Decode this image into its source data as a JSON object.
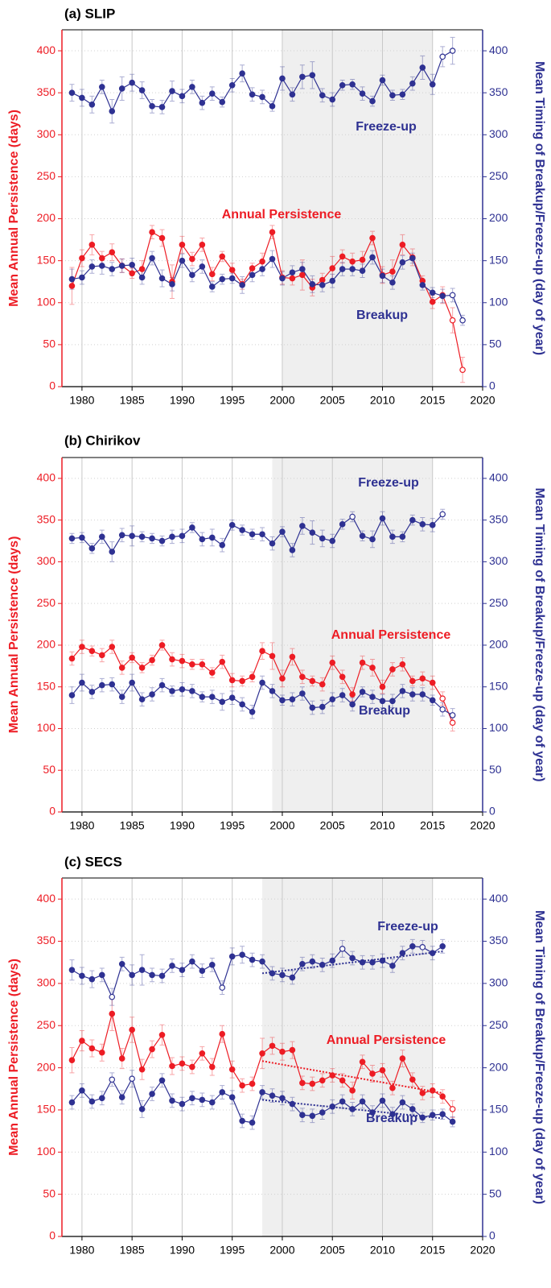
{
  "chart_data": [
    {
      "type": "line",
      "title": "(a) SLIP",
      "ylabel": "Mean Annual Persistence (days)",
      "y2label": "Mean Timing of Breakup/Freeze-up (day of year)",
      "x": [
        1979,
        1980,
        1981,
        1982,
        1983,
        1984,
        1985,
        1986,
        1987,
        1988,
        1989,
        1990,
        1991,
        1992,
        1993,
        1994,
        1995,
        1996,
        1997,
        1998,
        1999,
        2000,
        2001,
        2002,
        2003,
        2004,
        2005,
        2006,
        2007,
        2008,
        2009,
        2010,
        2011,
        2012,
        2013,
        2014,
        2015,
        2016,
        2017,
        2018
      ],
      "xlim": [
        1978,
        2020
      ],
      "xticks": [
        1980,
        1985,
        1990,
        1995,
        2000,
        2005,
        2010,
        2015,
        2020
      ],
      "ylim": [
        0,
        425
      ],
      "yticks": [
        0,
        50,
        100,
        150,
        200,
        250,
        300,
        350,
        400
      ],
      "y2lim": [
        0,
        425
      ],
      "y2ticks": [
        0,
        50,
        100,
        150,
        200,
        250,
        300,
        350,
        400
      ],
      "grid": true,
      "shade": [
        2000,
        2015
      ],
      "series": [
        {
          "name": "Annual Persistence",
          "color": "#ed1c24",
          "axis": "y",
          "values": [
            120,
            153,
            169,
            153,
            160,
            144,
            135,
            140,
            184,
            177,
            125,
            169,
            152,
            169,
            134,
            155,
            139,
            122,
            141,
            149,
            184,
            130,
            129,
            133,
            118,
            127,
            141,
            155,
            149,
            151,
            177,
            133,
            137,
            169,
            154,
            126,
            101,
            109,
            79,
            20
          ],
          "errors": [
            22,
            10,
            12,
            8,
            10,
            8,
            6,
            10,
            8,
            10,
            20,
            10,
            8,
            8,
            8,
            6,
            8,
            6,
            6,
            10,
            8,
            8,
            8,
            18,
            10,
            8,
            14,
            8,
            10,
            10,
            8,
            10,
            14,
            12,
            10,
            6,
            8,
            10,
            15,
            15
          ],
          "open_x": [
            2017,
            2018
          ]
        },
        {
          "name": "Breakup",
          "color": "#2e3192",
          "axis": "y2",
          "values": [
            128,
            130,
            143,
            144,
            140,
            144,
            145,
            130,
            153,
            129,
            122,
            150,
            133,
            143,
            119,
            128,
            129,
            121,
            133,
            140,
            152,
            129,
            136,
            140,
            122,
            121,
            126,
            140,
            140,
            138,
            154,
            132,
            124,
            148,
            153,
            121,
            112,
            108,
            109,
            79
          ],
          "errors": [
            12,
            8,
            8,
            10,
            8,
            8,
            8,
            8,
            8,
            10,
            8,
            8,
            8,
            8,
            6,
            6,
            6,
            10,
            8,
            8,
            10,
            8,
            8,
            8,
            10,
            8,
            8,
            8,
            8,
            8,
            8,
            8,
            8,
            8,
            6,
            6,
            6,
            8,
            8,
            6
          ],
          "open_x": [
            2017,
            2018
          ]
        },
        {
          "name": "Freeze-up",
          "color": "#2e3192",
          "axis": "y2",
          "values": [
            350,
            344,
            336,
            357,
            328,
            355,
            362,
            353,
            334,
            333,
            352,
            346,
            357,
            338,
            349,
            339,
            359,
            373,
            348,
            345,
            334,
            367,
            348,
            369,
            371,
            347,
            342,
            359,
            360,
            349,
            340,
            365,
            347,
            348,
            361,
            380,
            360,
            393,
            400,
            null
          ],
          "errors": [
            10,
            10,
            10,
            8,
            14,
            14,
            10,
            10,
            8,
            8,
            12,
            8,
            8,
            8,
            8,
            6,
            8,
            10,
            8,
            8,
            6,
            14,
            8,
            14,
            16,
            8,
            8,
            6,
            6,
            8,
            6,
            6,
            6,
            6,
            8,
            14,
            12,
            12,
            16,
            null
          ],
          "open_x": [
            2016,
            2017
          ]
        }
      ]
    },
    {
      "type": "line",
      "title": "(b) Chirikov",
      "ylabel": "Mean Annual Persistence (days)",
      "y2label": "Mean Timing of Breakup/Freeze-up (day of year)",
      "x": [
        1979,
        1980,
        1981,
        1982,
        1983,
        1984,
        1985,
        1986,
        1987,
        1988,
        1989,
        1990,
        1991,
        1992,
        1993,
        1994,
        1995,
        1996,
        1997,
        1998,
        1999,
        2000,
        2001,
        2002,
        2003,
        2004,
        2005,
        2006,
        2007,
        2008,
        2009,
        2010,
        2011,
        2012,
        2013,
        2014,
        2015,
        2016,
        2017
      ],
      "xlim": [
        1978,
        2020
      ],
      "xticks": [
        1980,
        1985,
        1990,
        1995,
        2000,
        2005,
        2010,
        2015,
        2020
      ],
      "ylim": [
        0,
        425
      ],
      "yticks": [
        0,
        50,
        100,
        150,
        200,
        250,
        300,
        350,
        400
      ],
      "y2lim": [
        0,
        425
      ],
      "y2ticks": [
        0,
        50,
        100,
        150,
        200,
        250,
        300,
        350,
        400
      ],
      "grid": true,
      "shade": [
        1999,
        2015
      ],
      "series": [
        {
          "name": "Annual Persistence",
          "color": "#ed1c24",
          "axis": "y",
          "values": [
            184,
            198,
            193,
            188,
            198,
            173,
            185,
            173,
            182,
            200,
            183,
            181,
            177,
            177,
            167,
            180,
            158,
            157,
            162,
            193,
            187,
            160,
            186,
            162,
            157,
            153,
            179,
            162,
            141,
            179,
            173,
            150,
            171,
            177,
            157,
            160,
            155,
            136,
            107
          ],
          "errors": [
            8,
            8,
            6,
            8,
            8,
            8,
            6,
            6,
            6,
            6,
            8,
            8,
            6,
            6,
            6,
            8,
            8,
            6,
            6,
            10,
            16,
            10,
            10,
            8,
            6,
            8,
            8,
            8,
            8,
            8,
            10,
            8,
            8,
            8,
            6,
            8,
            8,
            8,
            10
          ],
          "open_x": [
            2016,
            2017
          ]
        },
        {
          "name": "Breakup",
          "color": "#2e3192",
          "axis": "y2",
          "values": [
            140,
            155,
            144,
            152,
            153,
            138,
            155,
            135,
            141,
            152,
            145,
            147,
            145,
            138,
            138,
            132,
            137,
            129,
            120,
            155,
            145,
            134,
            135,
            142,
            125,
            126,
            135,
            140,
            129,
            144,
            138,
            133,
            133,
            145,
            141,
            141,
            134,
            123,
            116
          ],
          "errors": [
            10,
            10,
            8,
            8,
            8,
            8,
            10,
            8,
            8,
            8,
            6,
            8,
            8,
            6,
            8,
            10,
            8,
            8,
            8,
            8,
            8,
            6,
            8,
            8,
            8,
            8,
            8,
            8,
            8,
            6,
            8,
            8,
            8,
            8,
            8,
            8,
            6,
            8,
            8
          ],
          "open_x": [
            2016,
            2017
          ]
        },
        {
          "name": "Freeze-up",
          "color": "#2e3192",
          "axis": "y2",
          "values": [
            328,
            329,
            316,
            330,
            312,
            332,
            331,
            330,
            328,
            325,
            330,
            331,
            341,
            327,
            329,
            320,
            344,
            338,
            333,
            333,
            322,
            336,
            314,
            343,
            335,
            328,
            325,
            345,
            354,
            331,
            327,
            352,
            330,
            330,
            350,
            345,
            344,
            357,
            null
          ],
          "errors": [
            6,
            6,
            6,
            8,
            12,
            8,
            12,
            6,
            6,
            6,
            8,
            8,
            6,
            8,
            10,
            8,
            6,
            6,
            6,
            8,
            8,
            6,
            8,
            10,
            14,
            10,
            8,
            6,
            6,
            6,
            10,
            8,
            8,
            6,
            6,
            8,
            8,
            6,
            null
          ],
          "open_x": [
            2007,
            2016
          ]
        }
      ]
    },
    {
      "type": "line",
      "title": "(c) SECS",
      "ylabel": "Mean Annual Persistence (days)",
      "y2label": "Mean Timing of Breakup/Freeze-up (day of year)",
      "x": [
        1979,
        1980,
        1981,
        1982,
        1983,
        1984,
        1985,
        1986,
        1987,
        1988,
        1989,
        1990,
        1991,
        1992,
        1993,
        1994,
        1995,
        1996,
        1997,
        1998,
        1999,
        2000,
        2001,
        2002,
        2003,
        2004,
        2005,
        2006,
        2007,
        2008,
        2009,
        2010,
        2011,
        2012,
        2013,
        2014,
        2015,
        2016,
        2017
      ],
      "xlim": [
        1978,
        2020
      ],
      "xticks": [
        1980,
        1985,
        1990,
        1995,
        2000,
        2005,
        2010,
        2015,
        2020
      ],
      "ylim": [
        0,
        425
      ],
      "yticks": [
        0,
        50,
        100,
        150,
        200,
        250,
        300,
        350,
        400
      ],
      "y2lim": [
        0,
        425
      ],
      "y2ticks": [
        0,
        50,
        100,
        150,
        200,
        250,
        300,
        350,
        400
      ],
      "grid": true,
      "shade": [
        1998,
        2015
      ],
      "series": [
        {
          "name": "Annual Persistence",
          "color": "#ed1c24",
          "axis": "y",
          "values": [
            209,
            232,
            223,
            218,
            264,
            211,
            245,
            198,
            222,
            239,
            202,
            205,
            201,
            217,
            201,
            240,
            198,
            179,
            181,
            217,
            226,
            219,
            221,
            182,
            181,
            185,
            191,
            185,
            173,
            207,
            193,
            197,
            176,
            211,
            186,
            170,
            173,
            166,
            151
          ],
          "errors": [
            15,
            12,
            10,
            10,
            20,
            12,
            15,
            12,
            10,
            12,
            10,
            8,
            8,
            8,
            10,
            10,
            10,
            8,
            8,
            18,
            10,
            10,
            10,
            8,
            8,
            8,
            8,
            8,
            10,
            8,
            10,
            8,
            8,
            10,
            8,
            8,
            8,
            8,
            10
          ],
          "open_x": [
            2017
          ],
          "trend": {
            "x": [
              1998,
              2016
            ],
            "values": [
              208,
              170
            ]
          }
        },
        {
          "name": "Breakup",
          "color": "#2e3192",
          "axis": "y2",
          "values": [
            159,
            173,
            160,
            164,
            186,
            165,
            187,
            151,
            169,
            185,
            161,
            157,
            164,
            162,
            159,
            171,
            165,
            137,
            135,
            171,
            167,
            164,
            157,
            144,
            143,
            147,
            154,
            160,
            151,
            160,
            147,
            161,
            145,
            159,
            151,
            141,
            144,
            145,
            136
          ],
          "errors": [
            8,
            8,
            8,
            8,
            8,
            8,
            10,
            10,
            8,
            8,
            8,
            8,
            8,
            8,
            8,
            8,
            8,
            8,
            8,
            8,
            8,
            8,
            8,
            8,
            8,
            8,
            8,
            8,
            8,
            8,
            8,
            8,
            8,
            8,
            6,
            6,
            6,
            6,
            6
          ],
          "open_x": [
            1983,
            1985
          ],
          "trend": {
            "x": [
              1998,
              2016
            ],
            "values": [
              162,
              140
            ]
          }
        },
        {
          "name": "Freeze-up",
          "color": "#2e3192",
          "axis": "y2",
          "values": [
            316,
            309,
            305,
            310,
            284,
            323,
            310,
            316,
            310,
            309,
            321,
            316,
            326,
            315,
            322,
            295,
            332,
            334,
            328,
            326,
            312,
            310,
            307,
            323,
            326,
            322,
            327,
            341,
            330,
            325,
            325,
            327,
            321,
            336,
            344,
            343,
            336,
            344,
            null
          ],
          "errors": [
            12,
            10,
            10,
            8,
            10,
            8,
            12,
            18,
            8,
            8,
            8,
            8,
            8,
            8,
            8,
            8,
            10,
            10,
            8,
            8,
            8,
            8,
            8,
            8,
            8,
            8,
            8,
            10,
            8,
            8,
            8,
            8,
            8,
            8,
            8,
            8,
            8,
            8,
            null
          ],
          "open_x": [
            1983,
            1994,
            2006,
            2014
          ],
          "trend": {
            "x": [
              1998,
              2016
            ],
            "values": [
              312,
              338
            ]
          }
        }
      ]
    }
  ]
}
